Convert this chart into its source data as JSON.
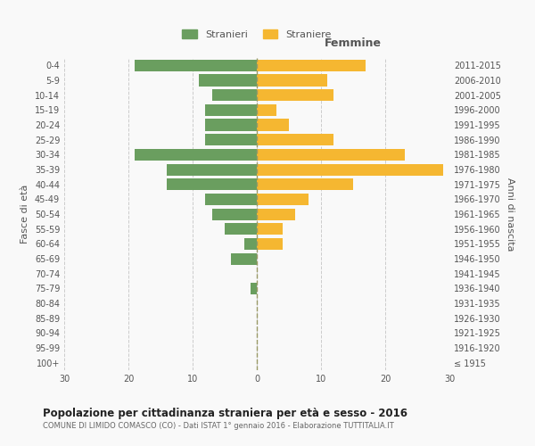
{
  "age_groups": [
    "100+",
    "95-99",
    "90-94",
    "85-89",
    "80-84",
    "75-79",
    "70-74",
    "65-69",
    "60-64",
    "55-59",
    "50-54",
    "45-49",
    "40-44",
    "35-39",
    "30-34",
    "25-29",
    "20-24",
    "15-19",
    "10-14",
    "5-9",
    "0-4"
  ],
  "birth_years": [
    "≤ 1915",
    "1916-1920",
    "1921-1925",
    "1926-1930",
    "1931-1935",
    "1936-1940",
    "1941-1945",
    "1946-1950",
    "1951-1955",
    "1956-1960",
    "1961-1965",
    "1966-1970",
    "1971-1975",
    "1976-1980",
    "1981-1985",
    "1986-1990",
    "1991-1995",
    "1996-2000",
    "2001-2005",
    "2006-2010",
    "2011-2015"
  ],
  "males": [
    0,
    0,
    0,
    0,
    0,
    1,
    0,
    4,
    2,
    5,
    7,
    8,
    14,
    14,
    19,
    8,
    8,
    8,
    7,
    9,
    19
  ],
  "females": [
    0,
    0,
    0,
    0,
    0,
    0,
    0,
    0,
    4,
    4,
    6,
    8,
    15,
    29,
    23,
    12,
    5,
    3,
    12,
    11,
    17
  ],
  "male_color": "#6a9e5f",
  "female_color": "#f5b731",
  "title": "Popolazione per cittadinanza straniera per età e sesso - 2016",
  "subtitle": "COMUNE DI LIMIDO COMASCO (CO) - Dati ISTAT 1° gennaio 2016 - Elaborazione TUTTITALIA.IT",
  "ylabel_left": "Fasce di età",
  "ylabel_right": "Anni di nascita",
  "xlabel_femmine": "Femmine",
  "legend_male": "Stranieri",
  "legend_female": "Straniere",
  "xlim": 30,
  "bg_color": "#f9f9f9",
  "grid_color": "#cccccc"
}
